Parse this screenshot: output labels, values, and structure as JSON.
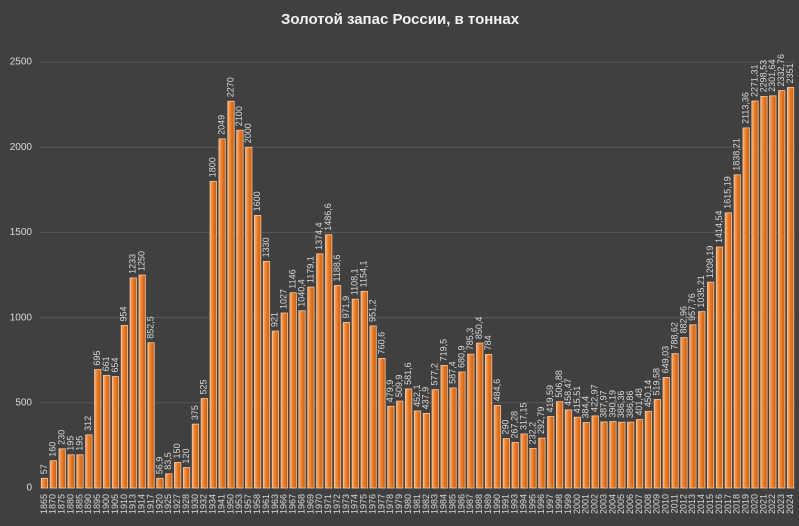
{
  "chart_data": {
    "type": "bar",
    "title": "Золотой запас России, в тоннах",
    "categories": [
      "1865",
      "1870",
      "1875",
      "1880",
      "1885",
      "1890",
      "1895",
      "1900",
      "1905",
      "1910",
      "1913",
      "1914",
      "1917",
      "1920",
      "1925",
      "1927",
      "1928",
      "1930",
      "1932",
      "1934",
      "1941",
      "1950",
      "1953",
      "1957",
      "1958",
      "1961",
      "1963",
      "1966",
      "1967",
      "1968",
      "1969",
      "1970",
      "1971",
      "1972",
      "1973",
      "1974",
      "1975",
      "1976",
      "1977",
      "1978",
      "1979",
      "1980",
      "1981",
      "1982",
      "1983",
      "1984",
      "1985",
      "1986",
      "1987",
      "1988",
      "1989",
      "1990",
      "1991",
      "1993",
      "1994",
      "1995",
      "1996",
      "1997",
      "1998",
      "1999",
      "2000",
      "2001",
      "2002",
      "2003",
      "2004",
      "2005",
      "2006",
      "2007",
      "2008",
      "2009",
      "2010",
      "2011",
      "2012",
      "2013",
      "2014",
      "2015",
      "2016",
      "2017",
      "2018",
      "2019",
      "2020",
      "2021",
      "2022",
      "2023",
      "2024"
    ],
    "values": [
      57,
      160,
      230,
      195,
      195,
      312,
      695,
      661,
      654,
      954,
      1233,
      1250,
      852.5,
      56.9,
      83.5,
      150,
      120,
      375,
      525,
      1800,
      2049,
      2270,
      2100,
      2000,
      1600,
      1330,
      921,
      1027,
      1146,
      1040.4,
      1179.1,
      1374.4,
      1486.6,
      1188.6,
      971.9,
      1108.1,
      1154.1,
      951.2,
      760.6,
      479.9,
      509.9,
      581.6,
      452.1,
      437.9,
      577.2,
      719.5,
      587.4,
      680.9,
      785.3,
      850.4,
      784,
      484.6,
      290,
      267.28,
      317.15,
      232.2,
      292.79,
      419.59,
      506.88,
      458.47,
      415.51,
      384.4,
      422.97,
      387.97,
      390.19,
      386.36,
      386.86,
      401.48,
      450.14,
      519.58,
      649.03,
      788.62,
      882.96,
      957.76,
      1035.21,
      1208.19,
      1414.54,
      1615.19,
      1838.21,
      2113.36,
      2271.31,
      2298.53,
      2301.64,
      2332.76,
      2351
    ],
    "value_labels": [
      "57",
      "160",
      "230",
      "195",
      "195",
      "312",
      "695",
      "661",
      "654",
      "954",
      "1233",
      "1250",
      "852,5",
      "56,9",
      "83,5",
      "150",
      "120",
      "375",
      "525",
      "1800",
      "2049",
      "2270",
      "2100",
      "2000",
      "1600",
      "1330",
      "921",
      "1027",
      "1146",
      "1040,4",
      "1179,1",
      "1374,4",
      "1486,6",
      "1188,6",
      "971,9",
      "1108,1",
      "1154,1",
      "951,2",
      "760,6",
      "479,9",
      "509,9",
      "581,6",
      "452,1",
      "437,9",
      "577,2",
      "719,5",
      "587,4",
      "680,9",
      "785,3",
      "850,4",
      "784",
      "484,6",
      "290",
      "267,28",
      "317,15",
      "232,2",
      "292,79",
      "419,59",
      "506,88",
      "458,47",
      "415,51",
      "384,4",
      "422,97",
      "387,97",
      "390,19",
      "386,36",
      "386,86",
      "401,48",
      "450,14",
      "519,58",
      "649,03",
      "788,62",
      "882,96",
      "957,76",
      "1035,21",
      "1208,19",
      "1414,54",
      "1615,19",
      "1838,21",
      "2113,36",
      "2271,31",
      "2298,53",
      "2301,64",
      "2332,76",
      "2351"
    ],
    "color": "#e87722",
    "ylim": [
      0,
      2600
    ],
    "yticks": [
      0,
      500,
      1000,
      1500,
      2000,
      2500
    ],
    "grid": true
  }
}
